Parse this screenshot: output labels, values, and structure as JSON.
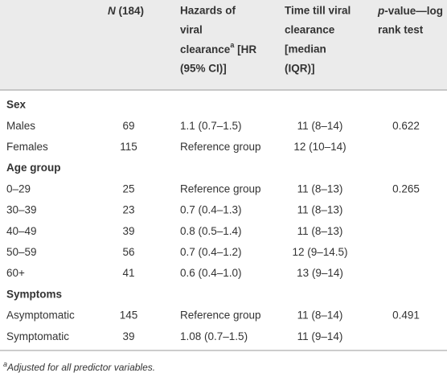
{
  "header": {
    "n_symbol": "N",
    "n_count": "(184)",
    "hazards": {
      "line1": "Hazards of",
      "line2": "viral",
      "line3": "clearance",
      "superscript": "a",
      "line3_end": "[HR",
      "line4": "(95% CI)]"
    },
    "time": [
      "Time till viral",
      "clearance",
      "[median",
      "(IQR)]"
    ],
    "pvalue": {
      "italic": "p",
      "rest": "-value—log",
      "line2": "rank test"
    }
  },
  "groups": [
    {
      "label": "Sex",
      "rows": [
        [
          "Males",
          69,
          "1.1 (0.7–1.5)",
          "11 (8–14)",
          0.622
        ],
        [
          "Females",
          115,
          "Reference group",
          "12 (10–14)"
        ]
      ]
    },
    {
      "label": "Age group",
      "rows": [
        [
          "0–29",
          25,
          "Reference group",
          "11 (8–13)",
          0.265
        ],
        [
          "30–39",
          23,
          "0.7 (0.4–1.3)",
          "11 (8–13)"
        ],
        [
          "40–49",
          39,
          "0.8 (0.5–1.4)",
          "11 (8–13)"
        ],
        [
          "50–59",
          56,
          "0.7 (0.4–1.2)",
          "12 (9–14.5)"
        ],
        [
          "60+",
          41,
          "0.6 (0.4–1.0)",
          "13 (9–14)"
        ]
      ]
    },
    {
      "label": "Symptoms",
      "rows": [
        [
          "Asymptomatic",
          145,
          "Reference group",
          "11 (8–14)",
          0.491
        ],
        [
          "Symptomatic",
          39,
          "1.08 (0.7–1.5)",
          "11 (9–14)"
        ]
      ]
    }
  ],
  "footnote": {
    "marker": "a",
    "text": "Adjusted for all predictor variables."
  }
}
